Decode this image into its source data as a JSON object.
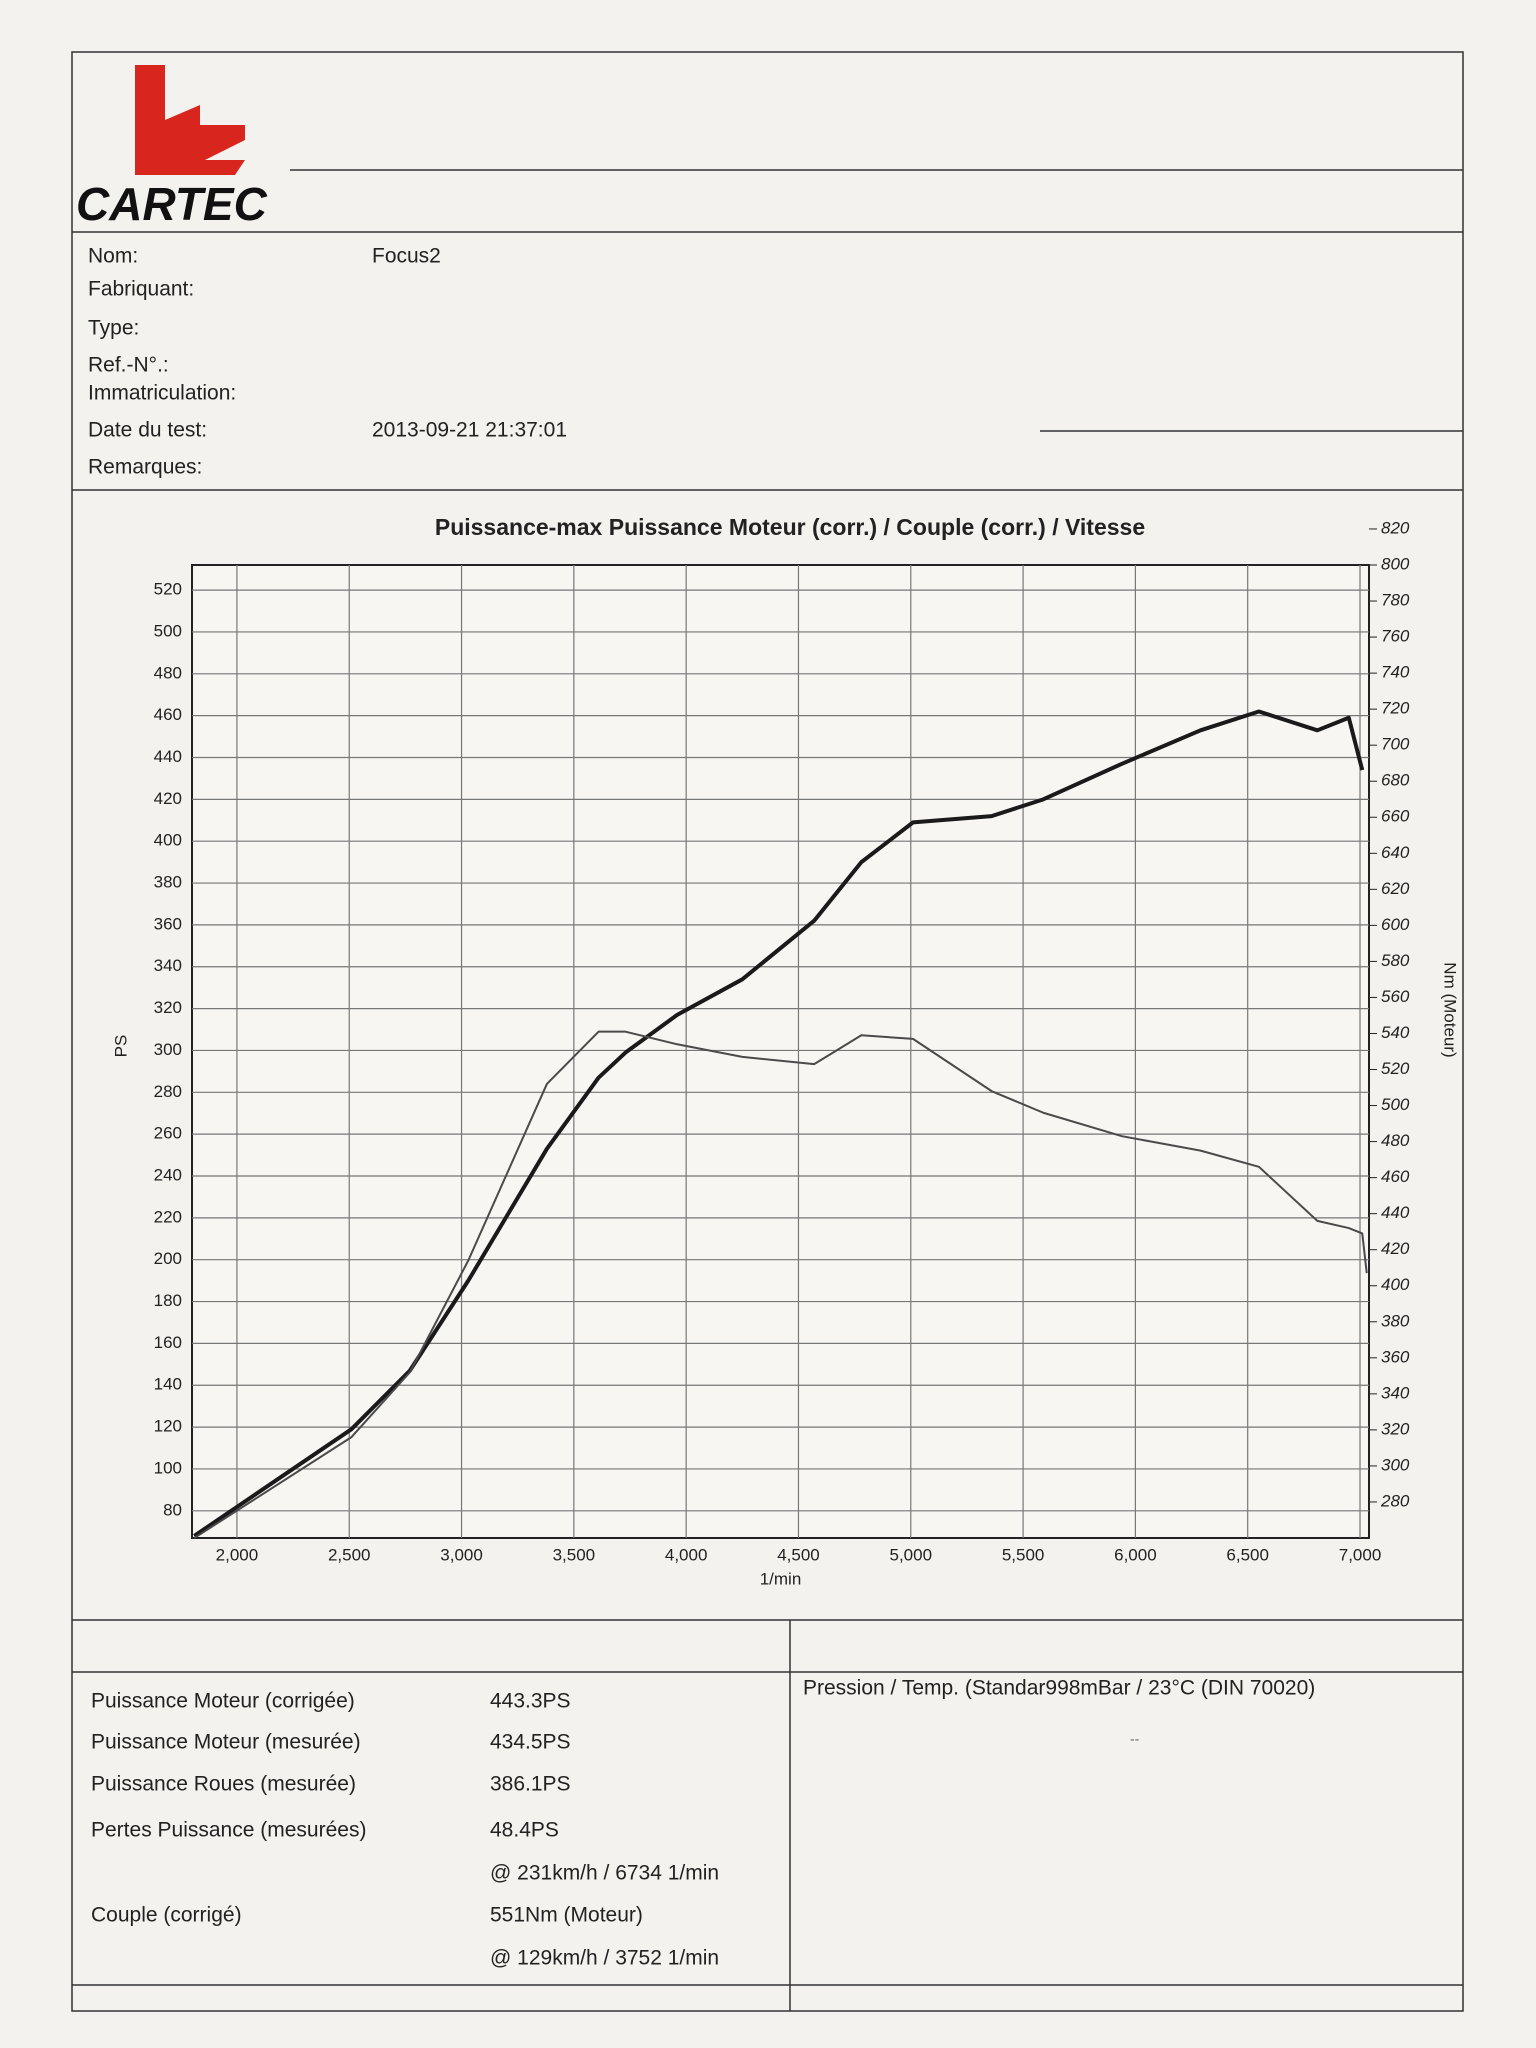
{
  "header": {
    "logo": "CARTEC",
    "fields": [
      {
        "label": "Nom:",
        "value": "Focus2"
      },
      {
        "label": "Fabriquant:"
      },
      {
        "label": "Type:"
      },
      {
        "label": "Ref.-N°.:"
      },
      {
        "label": "Immatriculation:"
      },
      {
        "label": "Date du test:",
        "value": "2013-09-21 21:37:01"
      },
      {
        "label": "Remarques:"
      }
    ]
  },
  "chart_data": {
    "type": "line",
    "title": "Puissance-max Puissance Moteur (corr.) / Couple (corr.) / Vitesse",
    "x_label": "1/min",
    "y_label": "PS",
    "y2_label": "Nm (Moteur)",
    "x": [
      1810,
      2510,
      2770,
      3030,
      3380,
      3610,
      3730,
      3960,
      4250,
      4570,
      4780,
      5010,
      5360,
      5590,
      5940,
      6290,
      6550,
      6810,
      6950,
      7010,
      7030
    ],
    "series": [
      {
        "name": "Puissance Moteur (corr.)",
        "color": "#1a1a1a",
        "axis": "y",
        "values": [
          68,
          119,
          147,
          190,
          253,
          287,
          299,
          317,
          334,
          362,
          390,
          409,
          412,
          420,
          437,
          453,
          462,
          453,
          459,
          434,
          null
        ]
      },
      {
        "name": "Couple (corr.)",
        "color": "#4a4a4a",
        "axis": "y2",
        "values": [
          260,
          316,
          352,
          414,
          512,
          541,
          541,
          534,
          527,
          523,
          539,
          537,
          508,
          496,
          483,
          475,
          466,
          436,
          432,
          429,
          407
        ]
      }
    ],
    "xlim": [
      1800,
      7040
    ],
    "xticks": [
      {
        "value": 2000,
        "label": "2,000"
      },
      {
        "value": 2500,
        "label": "2,500"
      },
      {
        "value": 3000,
        "label": "3,000"
      },
      {
        "value": 3500,
        "label": "3,500"
      },
      {
        "value": 4000,
        "label": "4,000"
      },
      {
        "value": 4500,
        "label": "4,500"
      },
      {
        "value": 5000,
        "label": "5,000"
      },
      {
        "value": 5500,
        "label": "5,500"
      },
      {
        "value": 6000,
        "label": "6,000"
      },
      {
        "value": 6500,
        "label": "6,500"
      },
      {
        "value": 7000,
        "label": "7,000"
      }
    ],
    "ylim": [
      67,
      532
    ],
    "yticks": [
      80,
      100,
      120,
      140,
      160,
      180,
      200,
      220,
      240,
      260,
      280,
      300,
      320,
      340,
      360,
      380,
      400,
      420,
      440,
      460,
      480,
      500,
      520
    ],
    "y2lim": [
      260,
      800
    ],
    "y2ticks": [
      280,
      300,
      320,
      340,
      360,
      380,
      400,
      420,
      440,
      460,
      480,
      500,
      520,
      540,
      560,
      580,
      600,
      620,
      640,
      660,
      680,
      700,
      720,
      740,
      760,
      780,
      800,
      820
    ],
    "grid": true
  },
  "results": {
    "rows": [
      {
        "label": "Puissance Moteur (corrigée)",
        "value": "443.3PS"
      },
      {
        "label": "Puissance Moteur (mesurée)",
        "value": "434.5PS"
      },
      {
        "label": "Puissance Roues (mesurée)",
        "value": "386.1PS"
      },
      {
        "label": "Pertes Puissance (mesurées)",
        "value": "48.4PS"
      },
      {
        "value": "@ 231km/h / 6734 1/min"
      },
      {
        "label": "Couple (corrigé)",
        "value": "551Nm (Moteur)"
      },
      {
        "value": "@ 129km/h / 3752 1/min"
      }
    ],
    "conditions": "Pression / Temp. (Standar998mBar / 23°C   (DIN 70020)",
    "conditions_note": "--"
  }
}
